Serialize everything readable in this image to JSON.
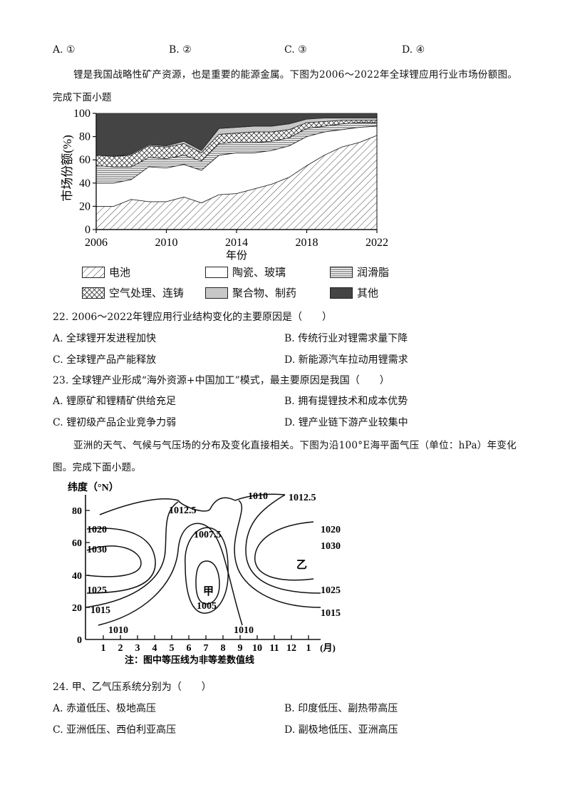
{
  "prev_options": [
    "A. ①",
    "B. ②",
    "C. ③",
    "D. ④"
  ],
  "intro1": {
    "line1": "锂是我国战略性矿产资源，也是重要的能源金属。下图为2006～2022年全球锂应用行业市场份额图。",
    "line2": "完成下面小题"
  },
  "chart_data": [
    {
      "type": "area",
      "ylabel": "市场份额(%)",
      "xlabel": "年份",
      "ylim": [
        0,
        100
      ],
      "yticks": [
        0,
        20,
        40,
        60,
        80,
        100
      ],
      "xticks": [
        2006,
        2010,
        2014,
        2018,
        2022
      ],
      "x": [
        2006,
        2007,
        2008,
        2009,
        2010,
        2011,
        2012,
        2013,
        2014,
        2015,
        2016,
        2017,
        2018,
        2019,
        2020,
        2021,
        2022
      ],
      "series": [
        {
          "name": "电池",
          "values": [
            20,
            20,
            26,
            24,
            24,
            28,
            23,
            30,
            31,
            35,
            39,
            45,
            55,
            64,
            71,
            75,
            81
          ]
        },
        {
          "name": "陶瓷、玻璃",
          "values": [
            20,
            20,
            17,
            30,
            29,
            28,
            28,
            34,
            35,
            31,
            29,
            27,
            25,
            20,
            15,
            13,
            8
          ]
        },
        {
          "name": "润滑脂",
          "values": [
            15,
            14,
            11,
            8,
            8,
            8,
            8,
            10,
            9,
            9,
            8,
            7,
            7,
            5,
            5,
            4,
            3
          ]
        },
        {
          "name": "空气处理、连铸",
          "values": [
            9,
            9,
            10,
            10,
            10,
            10,
            7,
            8,
            8,
            9,
            8,
            7,
            5,
            4,
            3,
            2,
            2
          ]
        },
        {
          "name": "聚合物、制药",
          "values": [
            0,
            0,
            1,
            1,
            1,
            2,
            2,
            5,
            5,
            5,
            5,
            5,
            3,
            3,
            2,
            2,
            2
          ]
        },
        {
          "name": "其他",
          "values": [
            36,
            37,
            35,
            27,
            28,
            24,
            32,
            13,
            12,
            11,
            11,
            9,
            5,
            4,
            4,
            4,
            4
          ]
        }
      ]
    },
    {
      "type": "contour",
      "ylabel": "纬度（°N）",
      "xlabel": "(月)",
      "yticks": [
        0,
        20,
        40,
        60,
        80
      ],
      "xticks": [
        "1",
        "2",
        "3",
        "4",
        "5",
        "6",
        "7",
        "8",
        "9",
        "10",
        "11",
        "12",
        "1"
      ],
      "note": "注：图中等压线为非等差数值线",
      "labels": [
        "1010",
        "1012.5",
        "1012.5",
        "1020",
        "1007.5",
        "1020",
        "1030",
        "1030",
        "乙",
        "1025",
        "甲",
        "1025",
        "1005",
        "1015",
        "1015",
        "1010",
        "1010"
      ]
    }
  ],
  "legend": {
    "battery": "电池",
    "ceramics": "陶瓷、玻璃",
    "grease": "润滑脂",
    "air": "空气处理、连铸",
    "polymer": "聚合物、制药",
    "other": "其他"
  },
  "q22": {
    "stem": "22. 2006～2022年锂应用行业结构变化的主要原因是（　　）",
    "A": "A. 全球锂开发进程加快",
    "B": "B. 传统行业对锂需求量下降",
    "C": "C. 全球锂产品产能释放",
    "D": "D. 新能源汽车拉动用锂需求"
  },
  "q23": {
    "stem": "23. 全球锂产业形成“海外资源+中国加工”模式，最主要原因是我国（　　）",
    "A": "A. 锂原矿和锂精矿供给充足",
    "B": "B. 拥有提锂技术和成本优势",
    "C": "C. 锂初级产品企业竞争力弱",
    "D": "D. 锂产业链下游产业较集中"
  },
  "intro2": {
    "line1": "亚洲的天气、气候与气压场的分布及变化直接相关。下图为沿100°E海平面气压（单位：hPa）年变化",
    "line2": "图。完成下面小题。"
  },
  "q24": {
    "stem": "24. 甲、乙气压系统分别为（　　）",
    "A": "A. 赤道低压、极地高压",
    "B": "B. 印度低压、副热带高压",
    "C": "C. 亚洲低压、西伯利亚高压",
    "D": "D. 副极地低压、亚洲高压"
  }
}
